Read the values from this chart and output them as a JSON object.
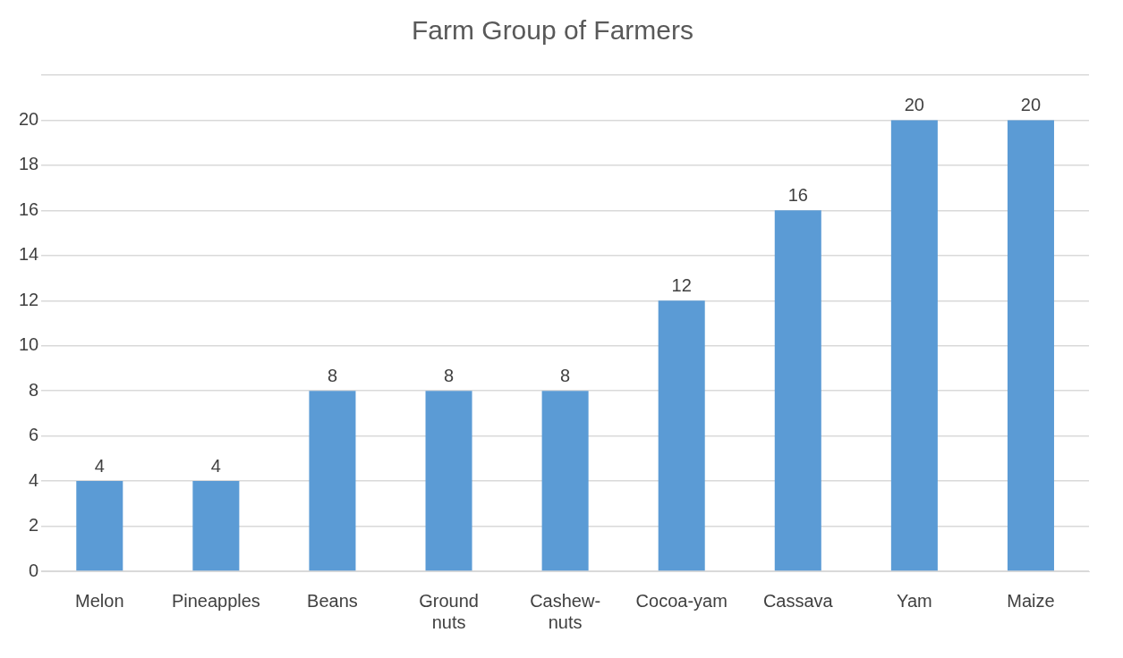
{
  "chart_data": {
    "type": "bar",
    "title": "Farm Group of Farmers",
    "categories": [
      "Melon",
      "Pineapples",
      "Beans",
      "Ground nuts",
      "Cashew-nuts",
      "Cocoa-yam",
      "Cassava",
      "Yam",
      "Maize"
    ],
    "values": [
      4,
      4,
      8,
      8,
      8,
      12,
      16,
      20,
      20
    ],
    "color": "#5b9bd5",
    "ylim": [
      0,
      22
    ],
    "yticks": [
      0,
      2,
      4,
      6,
      8,
      10,
      12,
      14,
      16,
      18,
      20,
      {
        "value": 22,
        "label": null
      }
    ],
    "grid": "y",
    "data_labels": true,
    "legend": false
  }
}
